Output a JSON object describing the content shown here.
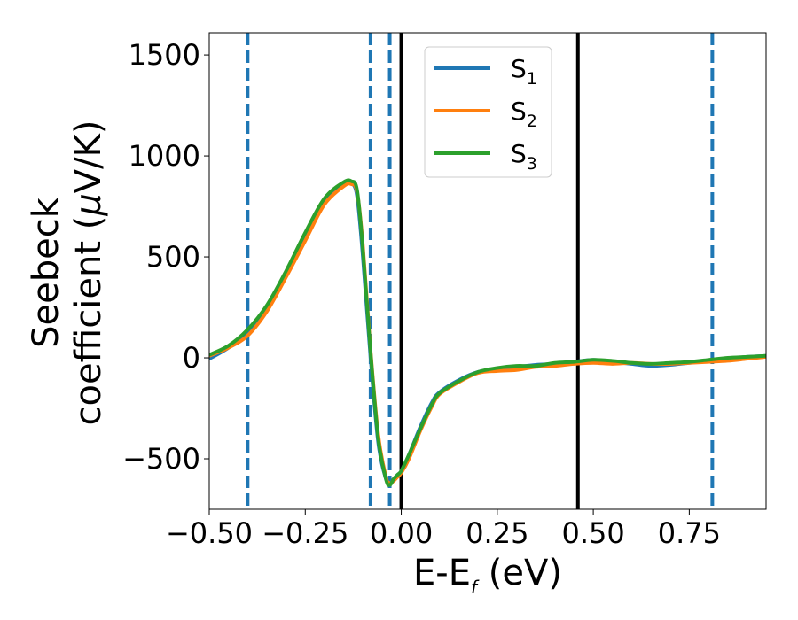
{
  "chart_data": {
    "type": "line",
    "xlabel_main": "E-E",
    "xlabel_sub": "f",
    "xlabel_unit": " (eV)",
    "ylabel_line1": "Seebeck",
    "ylabel_line2_pre": "coefficient  (",
    "ylabel_mu": "μ",
    "ylabel_line2_post": "V/K)",
    "xlim": [
      -0.5,
      0.95
    ],
    "ylim": [
      -750,
      1610
    ],
    "x_ticks": [
      -0.5,
      -0.25,
      0.0,
      0.25,
      0.5,
      0.75
    ],
    "x_tick_labels": [
      "−0.50",
      "−0.25",
      "0.00",
      "0.25",
      "0.50",
      "0.75"
    ],
    "y_ticks": [
      -500,
      0,
      500,
      1000,
      1500
    ],
    "y_tick_labels": [
      "−500",
      "0",
      "500",
      "1000",
      "1500"
    ],
    "grid": false,
    "legend_position": "top-center",
    "vlines_dashed": {
      "color": "#1f77b4",
      "x": [
        -0.4,
        -0.08,
        -0.03,
        0.81
      ]
    },
    "vlines_solid": {
      "color": "#000000",
      "x": [
        0.0,
        0.46
      ]
    },
    "series": [
      {
        "name": "S",
        "sub": "1",
        "color": "#1f77b4",
        "x": [
          -0.5,
          -0.45,
          -0.4,
          -0.35,
          -0.3,
          -0.25,
          -0.2,
          -0.15,
          -0.13,
          -0.115,
          -0.1,
          -0.08,
          -0.06,
          -0.04,
          -0.03,
          -0.02,
          -0.01,
          0.0,
          0.02,
          0.05,
          0.08,
          0.1,
          0.15,
          0.2,
          0.25,
          0.3,
          0.35,
          0.4,
          0.45,
          0.5,
          0.55,
          0.6,
          0.65,
          0.7,
          0.75,
          0.8,
          0.85,
          0.9,
          0.95
        ],
        "y": [
          -5,
          50,
          130,
          250,
          420,
          610,
          780,
          860,
          865,
          800,
          500,
          0,
          -420,
          -600,
          -620,
          -600,
          -580,
          -560,
          -480,
          -340,
          -220,
          -170,
          -110,
          -70,
          -55,
          -45,
          -35,
          -30,
          -20,
          -10,
          -20,
          -30,
          -40,
          -35,
          -25,
          -15,
          -5,
          5,
          10
        ]
      },
      {
        "name": "S",
        "sub": "2",
        "color": "#ff7f0e",
        "x": [
          -0.5,
          -0.45,
          -0.4,
          -0.35,
          -0.3,
          -0.25,
          -0.2,
          -0.15,
          -0.13,
          -0.115,
          -0.1,
          -0.08,
          -0.06,
          -0.04,
          -0.03,
          -0.02,
          -0.01,
          0.0,
          0.02,
          0.05,
          0.08,
          0.1,
          0.15,
          0.2,
          0.25,
          0.3,
          0.35,
          0.4,
          0.45,
          0.5,
          0.55,
          0.6,
          0.65,
          0.7,
          0.75,
          0.8,
          0.85,
          0.9,
          0.95
        ],
        "y": [
          10,
          50,
          110,
          230,
          400,
          580,
          760,
          850,
          860,
          820,
          560,
          40,
          -380,
          -590,
          -620,
          -610,
          -590,
          -570,
          -500,
          -360,
          -240,
          -180,
          -120,
          -75,
          -65,
          -60,
          -45,
          -40,
          -30,
          -25,
          -30,
          -25,
          -30,
          -30,
          -25,
          -20,
          -15,
          -5,
          5
        ]
      },
      {
        "name": "S",
        "sub": "3",
        "color": "#2ca02c",
        "x": [
          -0.5,
          -0.45,
          -0.4,
          -0.35,
          -0.3,
          -0.25,
          -0.2,
          -0.15,
          -0.13,
          -0.115,
          -0.1,
          -0.08,
          -0.06,
          -0.04,
          -0.03,
          -0.02,
          -0.01,
          0.0,
          0.02,
          0.05,
          0.08,
          0.1,
          0.15,
          0.2,
          0.25,
          0.3,
          0.35,
          0.4,
          0.45,
          0.5,
          0.55,
          0.6,
          0.65,
          0.7,
          0.75,
          0.8,
          0.85,
          0.9,
          0.95
        ],
        "y": [
          15,
          60,
          140,
          260,
          430,
          620,
          790,
          870,
          875,
          830,
          540,
          30,
          -400,
          -600,
          -630,
          -600,
          -580,
          -560,
          -480,
          -350,
          -230,
          -175,
          -115,
          -70,
          -50,
          -40,
          -40,
          -25,
          -20,
          -10,
          -15,
          -25,
          -30,
          -25,
          -20,
          -10,
          0,
          5,
          10
        ]
      }
    ]
  }
}
